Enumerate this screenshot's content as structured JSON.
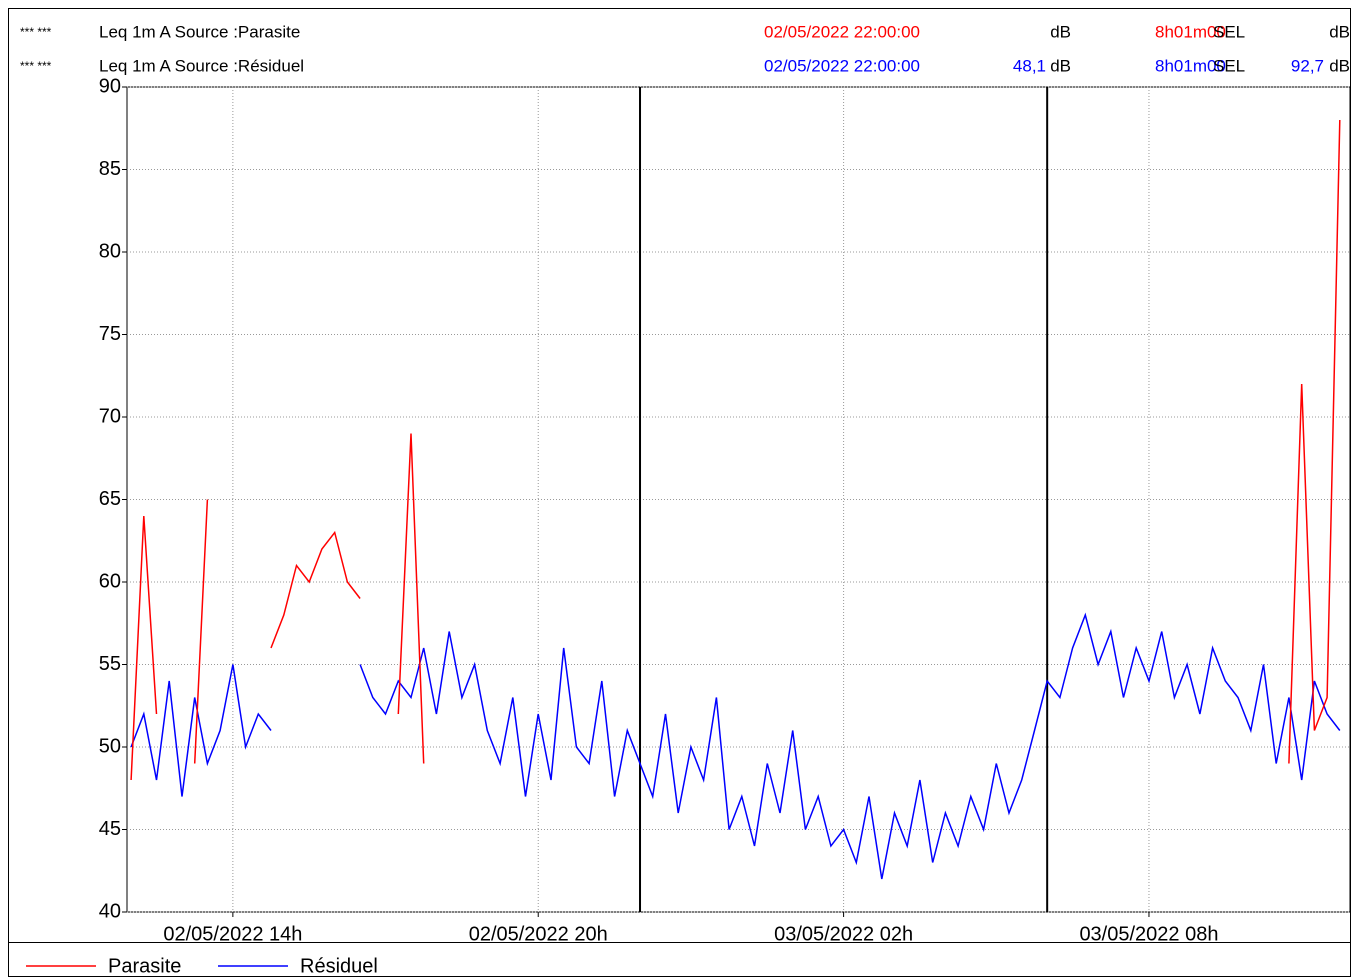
{
  "chart_data": {
    "type": "line",
    "info": [
      {
        "stars": "*** ***",
        "label": "Leq 1m  A  Source :Parasite",
        "date": "02/05/2022 22:00:00",
        "unit": "dB",
        "duration": "8h01m00",
        "sel": "SEL",
        "sel_unit": "dB"
      },
      {
        "stars": "*** ***",
        "label": "Leq 1m  A  Source :Résiduel",
        "date": "02/05/2022 22:00:00",
        "level": "48,1",
        "unit": "dB",
        "duration": "8h01m00",
        "sel": "SEL",
        "sel_value": "92,7",
        "sel_unit": "dB"
      }
    ],
    "xlim": [
      11.92,
      35.95
    ],
    "xticks": [
      {
        "value": 14,
        "label": "02/05/2022 14h"
      },
      {
        "value": 20,
        "label": "02/05/2022 20h"
      },
      {
        "value": 26,
        "label": "03/05/2022 02h"
      },
      {
        "value": 32,
        "label": "03/05/2022 08h"
      }
    ],
    "ylim": [
      40,
      90
    ],
    "yticks": [
      40,
      45,
      50,
      55,
      60,
      65,
      70,
      75,
      80,
      85,
      90
    ],
    "grid": true,
    "period_lines": [
      22,
      30
    ],
    "x": [
      12,
      12.25,
      12.5,
      12.75,
      13,
      13.25,
      13.5,
      13.75,
      14,
      14.25,
      14.5,
      14.75,
      15,
      15.25,
      15.5,
      15.75,
      16,
      16.25,
      16.5,
      16.75,
      17,
      17.25,
      17.5,
      17.75,
      18,
      18.25,
      18.5,
      18.75,
      19,
      19.25,
      19.5,
      19.75,
      20,
      20.25,
      20.5,
      20.75,
      21,
      21.25,
      21.5,
      21.75,
      22,
      22.25,
      22.5,
      22.75,
      23,
      23.25,
      23.5,
      23.75,
      24,
      24.25,
      24.5,
      24.75,
      25,
      25.25,
      25.5,
      25.75,
      26,
      26.25,
      26.5,
      26.75,
      27,
      27.25,
      27.5,
      27.75,
      28,
      28.25,
      28.5,
      28.75,
      29,
      29.25,
      29.5,
      29.75,
      30,
      30.25,
      30.5,
      30.75,
      31,
      31.25,
      31.5,
      31.75,
      32,
      32.25,
      32.5,
      32.75,
      33,
      33.25,
      33.5,
      33.75,
      34,
      34.25,
      34.5,
      34.75,
      35,
      35.25,
      35.5,
      35.75
    ],
    "series": [
      {
        "name": "Parasite",
        "color": "#ff0000",
        "values": [
          48,
          64,
          52,
          null,
          null,
          49,
          65,
          null,
          null,
          null,
          null,
          56,
          58,
          61,
          60,
          62,
          63,
          60,
          59,
          null,
          null,
          52,
          69,
          49,
          null,
          null,
          null,
          null,
          null,
          null,
          null,
          null,
          null,
          null,
          null,
          null,
          null,
          null,
          null,
          null,
          null,
          null,
          null,
          null,
          null,
          null,
          null,
          null,
          null,
          null,
          null,
          null,
          null,
          null,
          null,
          null,
          null,
          null,
          null,
          null,
          null,
          null,
          null,
          null,
          null,
          null,
          null,
          null,
          null,
          null,
          null,
          null,
          null,
          null,
          null,
          null,
          null,
          null,
          null,
          null,
          null,
          null,
          null,
          null,
          null,
          null,
          null,
          null,
          null,
          null,
          null,
          49,
          72,
          51,
          53,
          88
        ]
      },
      {
        "name": "Résiduel",
        "color": "#0000ff",
        "values": [
          50,
          52,
          48,
          54,
          47,
          53,
          49,
          51,
          55,
          50,
          52,
          51,
          null,
          null,
          null,
          null,
          null,
          null,
          55,
          53,
          52,
          54,
          53,
          56,
          52,
          57,
          53,
          55,
          51,
          49,
          53,
          47,
          52,
          48,
          56,
          50,
          49,
          54,
          47,
          51,
          49,
          47,
          52,
          46,
          50,
          48,
          53,
          45,
          47,
          44,
          49,
          46,
          51,
          45,
          47,
          44,
          45,
          43,
          47,
          42,
          46,
          44,
          48,
          43,
          46,
          44,
          47,
          45,
          49,
          46,
          48,
          51,
          54,
          53,
          56,
          58,
          55,
          57,
          53,
          56,
          54,
          57,
          53,
          55,
          52,
          56,
          54,
          53,
          51,
          55,
          49,
          53,
          48,
          54,
          52,
          51
        ]
      }
    ]
  }
}
